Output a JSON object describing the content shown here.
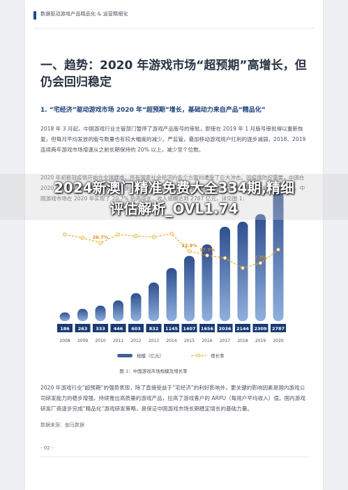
{
  "header": {
    "section_title": "数据驱动游戏产品精品化 & 运营精细化"
  },
  "title": "一、趋势：2020 年游戏市场“超预期”高增长，但仍会回归稳定",
  "subheading": "1. “宅经济”驱动游戏市场 2020 年“超预期”增长，基础动力来自产品“精品化”",
  "paragraphs": [
    "2018 年 3 月起，中国游戏行业主管部门暂停了游戏产品版号的审批，即使在 2019 年 1 月版号审批得以重新恢复，但每月平均发放的版号数量也有较大幅度的减少。严监管，叠加移动游戏用户红利的逐步减弱，2018、2019 连续两年游戏市场增速从之前长期保持的 20% 以上，减少至个位数。",
    "2020 年初新冠疫情开始在全球肆虐，所有国家社会经济的各个方面均遭受了巨大冲击。因疫情防控需要，中国在 2020 年采取了大规模的社交隔离措施，从而催生了“宅经济”的再次崛起。作为“宅经济”最为受益的行业之一，中国游戏市场在 2020 年实现了 20.7% 的高增长，收入规模达到 2787 亿元，详见图 1：",
    "2020 年游戏行业“超预期”的强势表现，除了直接受益于“宅经济”的利好影响外，更关键的影响因素是国内游戏公司研发能力的稳步增强，持续推出高质量的游戏产品，拉高了游戏客户的 ARPU（每用户平均收入）值。国内游戏研发厂商逐步完成“精品化”游戏研发策略，是保证中国游戏市场长期稳定增长的基础力量。"
  ],
  "chart_data": {
    "type": "bar",
    "categories": [
      "2008",
      "2009",
      "2010",
      "2011",
      "2012",
      "2013",
      "2014",
      "2015",
      "2016",
      "2017",
      "2018",
      "2019",
      "2020"
    ],
    "series": [
      {
        "name": "规模（亿元）",
        "type": "bar",
        "values": [
          186,
          263,
          333,
          446,
          603,
          832,
          1145,
          1407,
          1656,
          2036,
          2144,
          2309,
          2787
        ]
      },
      {
        "name": "增长率",
        "type": "line",
        "visible_labels": {
          "2010": "26.7%",
          "2015": "22.9%",
          "2016": "17.7%",
          "2019": "7.7%"
        }
      }
    ],
    "caption": "图 1：中国游戏市场规模及增长率",
    "legend_position": "bottom",
    "colors": {
      "bar_top": "#2f4f8f",
      "bar_bottom": "#8fb0dc",
      "label_box": "#173a73",
      "line": "#f0a92a"
    }
  },
  "source": "数据来源：伽马数据",
  "page_number": "- 02 -",
  "overlay": {
    "title_line1": "2024新澳门精准免费大全334期,精细",
    "title_line2": "评估解析_OVL1.74"
  }
}
